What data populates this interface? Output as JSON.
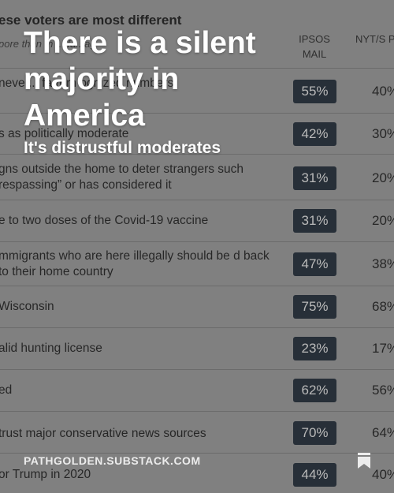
{
  "table": {
    "title": "ese voters are most different",
    "subtitle": "pore than th  ... fa..   ag",
    "col_ipsos": "IPSOS MAIL",
    "col_nyt": "NYT/S PHO",
    "rows": [
      {
        "label": "neve   ... fa  rom ognized numbers",
        "ipsos": "55%",
        "nyt": "40%"
      },
      {
        "label": "s as politically moderate",
        "ipsos": "42%",
        "nyt": "30%"
      },
      {
        "label": "gns outside the home to deter strangers such respassing” or has considered it",
        "ipsos": "31%",
        "nyt": "20%"
      },
      {
        "label": "e to two doses of the Covid-19 vaccine",
        "ipsos": "31%",
        "nyt": "20%"
      },
      {
        "label": "mmigrants who are here illegally should be d back to their home country",
        "ipsos": "47%",
        "nyt": "38%"
      },
      {
        "label": "Wisconsin",
        "ipsos": "75%",
        "nyt": "68%"
      },
      {
        "label": "alid hunting license",
        "ipsos": "23%",
        "nyt": "17%"
      },
      {
        "label": "ed",
        "ipsos": "62%",
        "nyt": "56%"
      },
      {
        "label": "trust major conservative news sources",
        "ipsos": "70%",
        "nyt": "64%"
      },
      {
        "label": "or Trump in 2020",
        "ipsos": "44%",
        "nyt": "40%"
      }
    ]
  },
  "overlay": {
    "headline": "There is a silent majority in America",
    "subheadline": "It's distrustful moderates",
    "footer": "PATHGOLDEN.SUBSTACK.COM"
  },
  "icons": {
    "bookmark": "bookmark-icon"
  },
  "colors": {
    "badge": "#1f2a36",
    "text_overlay": "#ffffff"
  }
}
